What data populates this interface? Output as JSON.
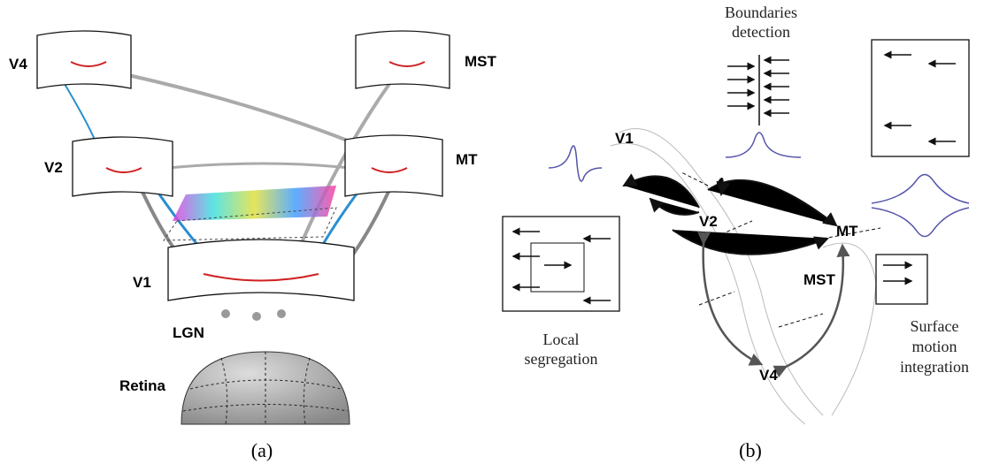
{
  "panel_a": {
    "areas": {
      "v4": "V4",
      "mst": "MST",
      "v2": "V2",
      "mt": "MT",
      "v1": "V1",
      "lgn": "LGN",
      "retina": "Retina"
    },
    "caption": "(a)"
  },
  "panel_b": {
    "boundaries": [
      "Boundaries",
      "detection"
    ],
    "areas": {
      "v1": "V1",
      "v2": "V2",
      "mt": "MT",
      "mst": "MST",
      "v4": "V4"
    },
    "local": [
      "Local",
      "segregation"
    ],
    "surface": [
      "Surface",
      "motion",
      "integration"
    ],
    "caption": "(b)"
  }
}
